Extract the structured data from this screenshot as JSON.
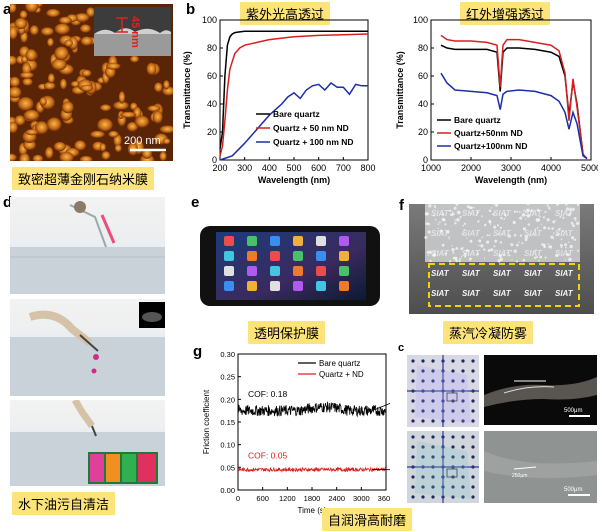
{
  "panels": {
    "a": {
      "letter": "a",
      "caption": "致密超薄金刚石纳米膜",
      "inset_label": "45 nm",
      "scalebar": "200 nm"
    },
    "b": {
      "letter": "b",
      "caption_left": "紫外光高透过",
      "caption_right": "红外增强透过"
    },
    "c": {
      "letter": "c",
      "scalebar_top": "500μm",
      "scalebar_bottom": "500μm",
      "measure_top": "~μm",
      "measure_bottom": "250μm"
    },
    "d": {
      "letter": "d",
      "caption": "水下油污自清洁"
    },
    "e": {
      "letter": "e",
      "caption": "透明保护膜"
    },
    "f": {
      "letter": "f",
      "caption": "蒸汽冷凝防雾",
      "siat": "SIAT"
    },
    "g": {
      "letter": "g",
      "caption": "自润滑高耐磨",
      "cof_top": "COF: 0.18",
      "cof_bottom": "COF: 0.05"
    }
  },
  "chart_data": [
    {
      "id": "b-left",
      "type": "line",
      "xlabel": "Wavelength (nm)",
      "ylabel": "Transmittance (%)",
      "xlim": [
        200,
        800
      ],
      "ylim": [
        0,
        100
      ],
      "xticks": [
        200,
        300,
        400,
        500,
        600,
        700,
        800
      ],
      "yticks": [
        0,
        20,
        40,
        60,
        80,
        100
      ],
      "legend_position": "bottom-right",
      "series": [
        {
          "name": "Bare quartz",
          "color": "#000000",
          "x": [
            200,
            210,
            220,
            230,
            240,
            250,
            260,
            280,
            300,
            350,
            400,
            500,
            600,
            700,
            800
          ],
          "y": [
            8,
            20,
            60,
            82,
            88,
            90,
            91,
            91.5,
            92,
            92,
            92,
            92,
            92,
            92,
            92
          ]
        },
        {
          "name": "Quartz + 50 nm ND",
          "color": "#d62020",
          "x": [
            200,
            210,
            220,
            230,
            240,
            260,
            280,
            300,
            350,
            400,
            500,
            600,
            700,
            800
          ],
          "y": [
            3,
            10,
            28,
            50,
            65,
            76,
            80,
            82,
            84,
            86,
            88,
            89,
            89.5,
            90
          ]
        },
        {
          "name": "Quartz + 100 nm ND",
          "color": "#1c2fa8",
          "x": [
            200,
            250,
            300,
            350,
            400,
            450,
            475,
            500,
            525,
            550,
            575,
            600,
            625,
            650,
            675,
            700,
            725,
            750,
            775,
            800
          ],
          "y": [
            0,
            3,
            12,
            22,
            32,
            40,
            45,
            48,
            44,
            50,
            53,
            54,
            50,
            55,
            52,
            52,
            47,
            54,
            53,
            53
          ]
        }
      ]
    },
    {
      "id": "b-right",
      "type": "line",
      "xlabel": "Wavelength (nm)",
      "ylabel": "Transmittance (%)",
      "xlim": [
        1000,
        5000
      ],
      "ylim": [
        0,
        100
      ],
      "xticks": [
        1000,
        2000,
        3000,
        4000,
        5000
      ],
      "yticks": [
        0,
        20,
        40,
        60,
        80,
        100
      ],
      "legend_position": "bottom-left",
      "series": [
        {
          "name": "Bare quartz",
          "color": "#000000",
          "x": [
            1250,
            1400,
            1600,
            2000,
            2400,
            2650,
            2730,
            2800,
            2900,
            3200,
            3600,
            4000,
            4200,
            4350,
            4450,
            4550,
            4650,
            4800,
            4900
          ],
          "y": [
            82,
            80,
            79,
            79,
            79,
            77,
            49,
            77,
            80,
            80,
            79,
            77,
            74,
            60,
            32,
            56,
            40,
            4,
            1
          ]
        },
        {
          "name": "Quartz+50nm ND",
          "color": "#d62020",
          "x": [
            1250,
            1400,
            1600,
            2000,
            2400,
            2650,
            2730,
            2800,
            2900,
            3200,
            3600,
            4000,
            4200,
            4350,
            4450,
            4550,
            4650,
            4800,
            4900
          ],
          "y": [
            89,
            86,
            85,
            85,
            84,
            82,
            52,
            82,
            86,
            86,
            84,
            82,
            78,
            62,
            28,
            58,
            38,
            4,
            1
          ]
        },
        {
          "name": "Quartz+100nm ND",
          "color": "#1c2fa8",
          "x": [
            1250,
            1400,
            1600,
            2000,
            2400,
            2650,
            2730,
            2800,
            2900,
            3200,
            3600,
            4000,
            4200,
            4350,
            4450,
            4550,
            4650,
            4800,
            4900
          ],
          "y": [
            62,
            55,
            50,
            49,
            48,
            46,
            36,
            47,
            49,
            50,
            49,
            46,
            42,
            34,
            22,
            34,
            26,
            3,
            1
          ]
        }
      ]
    },
    {
      "id": "g",
      "type": "line",
      "xlabel": "Time (s)",
      "ylabel": "Friction coefficient",
      "xlim": [
        0,
        3600
      ],
      "ylim": [
        0,
        0.3
      ],
      "xticks": [
        0,
        600,
        1200,
        1800,
        2400,
        3000,
        3600
      ],
      "yticks": [
        0.0,
        0.05,
        0.1,
        0.15,
        0.2,
        0.25,
        0.3
      ],
      "legend_position": "top-right",
      "series": [
        {
          "name": "Bare quartz",
          "color": "#000000",
          "mean": 0.175,
          "noise": 0.012
        },
        {
          "name": "Quartz + ND",
          "color": "#d62020",
          "mean": 0.045,
          "noise": 0.004
        }
      ]
    }
  ]
}
